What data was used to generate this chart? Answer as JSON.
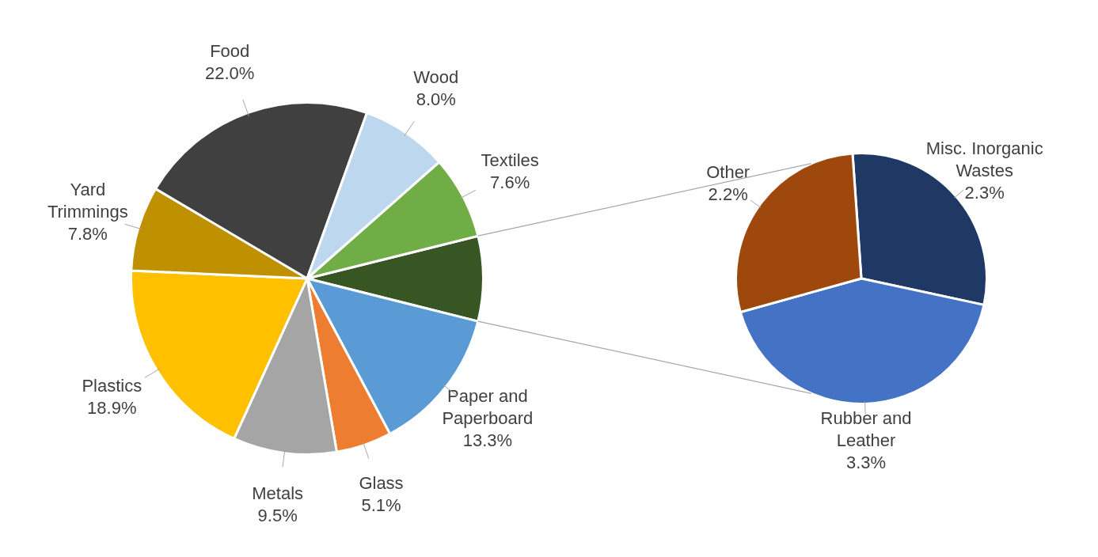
{
  "chart_data": [
    {
      "type": "pie",
      "categories": [
        null,
        "Paper and Paperboard",
        "Glass",
        "Metals",
        "Plastics",
        "Yard Trimmings",
        "Food",
        "Wood",
        "Textiles"
      ],
      "values": [
        7.8,
        13.3,
        5.1,
        9.5,
        18.9,
        7.8,
        22.0,
        8.0,
        7.6
      ],
      "value_labels": [
        null,
        "13.3%",
        "5.1%",
        "9.5%",
        "18.9%",
        "7.8%",
        "22.0%",
        "8.0%",
        "7.6%"
      ],
      "colors": [
        "#375623",
        "#5b9bd5",
        "#ed7d31",
        "#a5a5a5",
        "#ffc000",
        "#bf9000",
        "#404040",
        "#bdd7ee",
        "#70ad47"
      ]
    },
    {
      "type": "pie",
      "categories": [
        "Misc. Inorganic Wastes",
        "Rubber and Leather",
        "Other"
      ],
      "values": [
        2.3,
        3.3,
        2.2
      ],
      "value_labels": [
        "2.3%",
        "3.3%",
        "2.2%"
      ],
      "colors": [
        "#203864",
        "#4472c4",
        "#9e480e"
      ]
    }
  ]
}
